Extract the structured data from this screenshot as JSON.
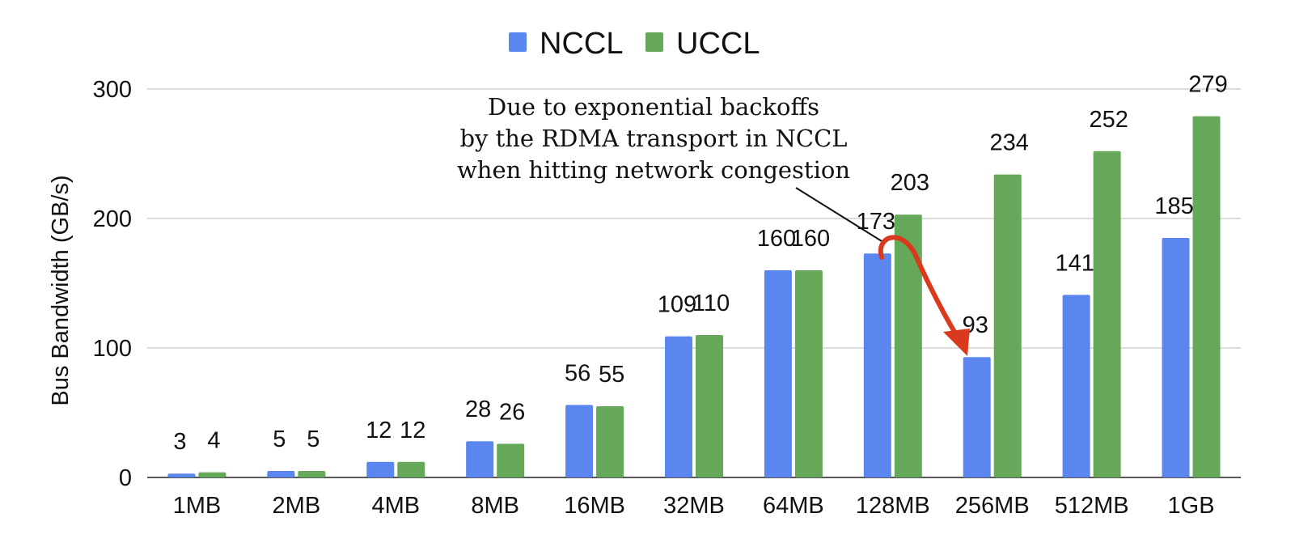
{
  "chart_data": {
    "type": "bar",
    "categories": [
      "1MB",
      "2MB",
      "4MB",
      "8MB",
      "16MB",
      "32MB",
      "64MB",
      "128MB",
      "256MB",
      "512MB",
      "1GB"
    ],
    "series": [
      {
        "name": "NCCL",
        "color": "#5b86f0",
        "values": [
          3,
          5,
          12,
          28,
          56,
          109,
          160,
          173,
          93,
          141,
          185
        ]
      },
      {
        "name": "UCCL",
        "color": "#66a85a",
        "values": [
          4,
          5,
          12,
          26,
          55,
          110,
          160,
          203,
          234,
          252,
          279
        ]
      }
    ],
    "title": "",
    "xlabel": "",
    "ylabel": "Bus Bandwidth (GB/s)",
    "ylim": [
      0,
      300
    ],
    "yticks": [
      "0",
      "100",
      "200",
      "300"
    ],
    "grid": true,
    "legend_position": "top-center",
    "annotation": {
      "lines": [
        "Due to exponential backoffs",
        "by the RDMA transport in NCCL",
        "when hitting network congestion"
      ],
      "arrow_color": "#d93a1e",
      "from_category": "128MB",
      "to_category": "256MB"
    }
  }
}
